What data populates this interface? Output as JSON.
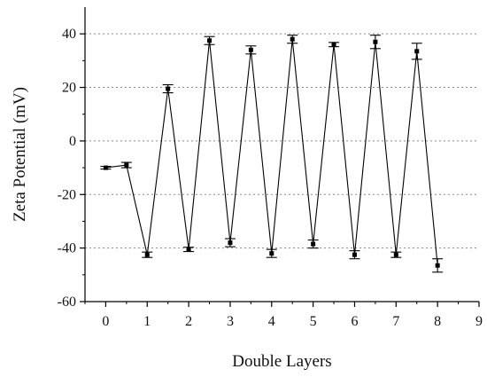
{
  "chart_data": {
    "type": "line",
    "title": "",
    "xlabel": "Double Layers",
    "ylabel": "Zeta Potential (mV)",
    "xlim": [
      -0.5,
      9
    ],
    "ylim": [
      -60,
      50
    ],
    "x_ticks": [
      0,
      1,
      2,
      3,
      4,
      5,
      6,
      7,
      8,
      9
    ],
    "y_ticks": [
      -60,
      -40,
      -20,
      0,
      20,
      40
    ],
    "x_tick_labels": [
      "0",
      "1",
      "2",
      "3",
      "4",
      "5",
      "6",
      "7",
      "8",
      "9"
    ],
    "y_tick_labels": [
      "-60",
      "-40",
      "-20",
      "0",
      "20",
      "40"
    ],
    "grid": "horizontal dotted",
    "legend": "none",
    "series": [
      {
        "x": [
          0,
          0.5,
          1,
          1.5,
          2,
          2.5,
          3,
          3.5,
          4,
          4.5,
          5,
          5.5,
          6,
          6.5,
          7,
          7.5,
          8
        ],
        "y": [
          -10,
          -9,
          -42.5,
          19.5,
          -40.5,
          37.5,
          -38,
          34,
          -42,
          38,
          -38.5,
          36,
          -42.5,
          37,
          -42.5,
          33.5,
          -46.5
        ],
        "error": [
          0.5,
          1,
          1,
          1.5,
          0.8,
          1.5,
          1.5,
          1.5,
          1.5,
          1.5,
          1.5,
          0.8,
          1.5,
          2.5,
          1,
          3,
          2.5
        ],
        "color": "#000000"
      }
    ]
  }
}
